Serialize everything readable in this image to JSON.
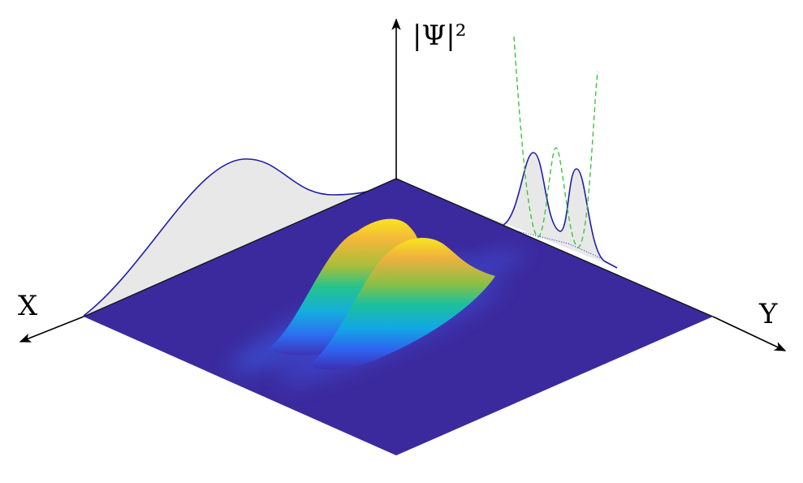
{
  "axes": {
    "x_label": "X",
    "y_label": "Y",
    "z_label": "|Ψ|²"
  }
}
